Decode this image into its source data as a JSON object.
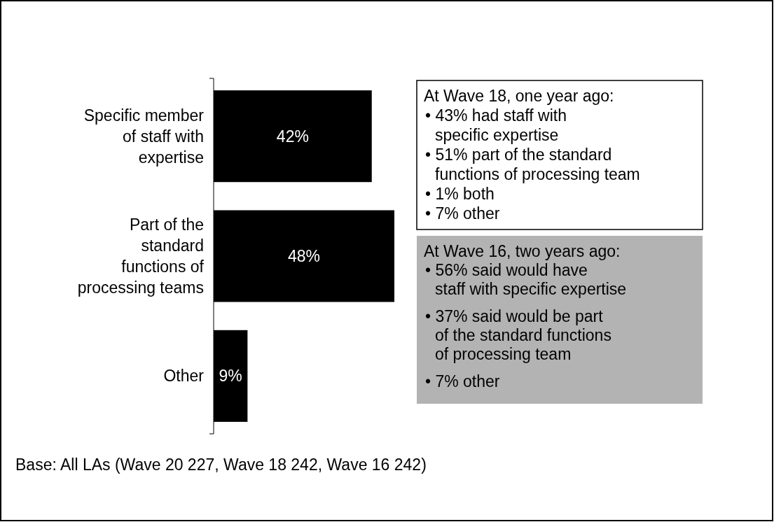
{
  "chart_data": {
    "type": "bar",
    "orientation": "horizontal",
    "categories": [
      "Specific member of staff with expertise",
      "Part of the standard functions of processing teams",
      "Other"
    ],
    "values": [
      42,
      48,
      9
    ],
    "color": "#000000",
    "data_labels": true,
    "value_labels": [
      "42%",
      "48%",
      "9%"
    ],
    "annotations": [
      "At Wave 18, one year ago:\n• 43% had staff with\nspecific expertise\n• 51% part of the standard\nfunctions of processing team\n• 1% both\n• 7% other",
      "At Wave 16, two years ago:\n• 56% said would have\nstaff with specific expertise\n• 37% said would be part\nof the standard functions\nof processing team\n• 7% other",
      "Base: All LAs (Wave 20 227, Wave 18 242, Wave 16 242)"
    ]
  }
}
